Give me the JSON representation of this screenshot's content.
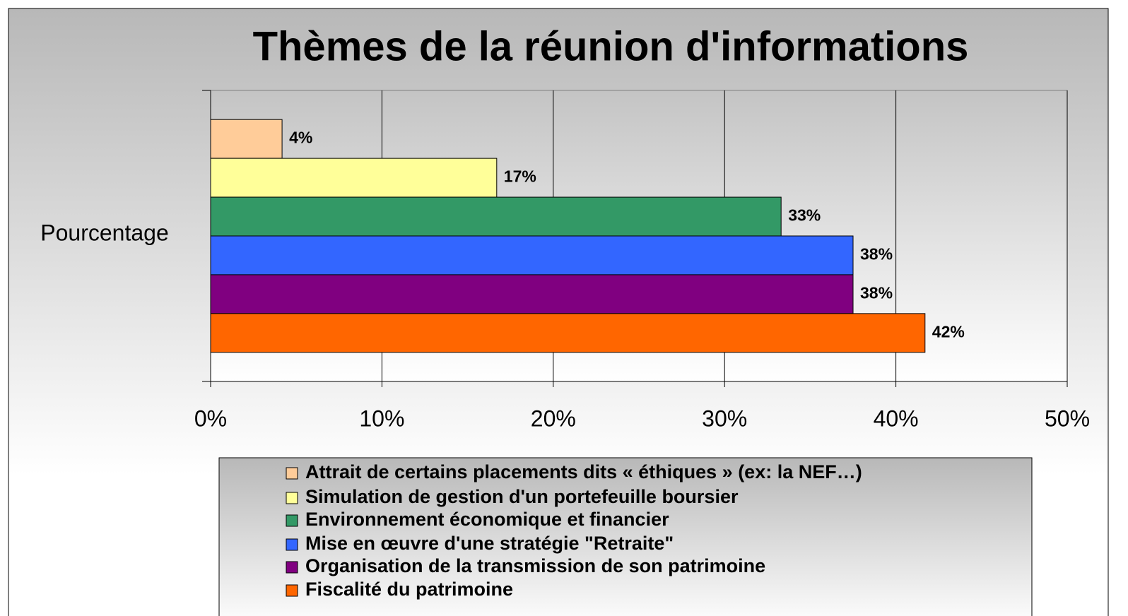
{
  "chart_data": {
    "type": "bar",
    "orientation": "horizontal",
    "title": "Thèmes de la réunion d'informations",
    "categories": [
      "Pourcentage"
    ],
    "series": [
      {
        "name": "Attrait de certains placements dits « éthiques » (ex: la NEF…)",
        "color": "#ffcc99",
        "values": [
          4.17
        ],
        "value_labels": [
          "4%"
        ]
      },
      {
        "name": "Simulation de gestion d'un portefeuille boursier",
        "color": "#ffff99",
        "values": [
          16.7
        ],
        "value_labels": [
          "17%"
        ]
      },
      {
        "name": "Environnement économique et financier",
        "color": "#339966",
        "values": [
          33.3
        ],
        "value_labels": [
          "33%"
        ]
      },
      {
        "name": "Mise en œuvre d'une stratégie \"Retraite\"",
        "color": "#3366ff",
        "values": [
          37.5
        ],
        "value_labels": [
          "38%"
        ]
      },
      {
        "name": "Organisation de la transmission de son patrimoine",
        "color": "#800080",
        "values": [
          37.5
        ],
        "value_labels": [
          "38%"
        ]
      },
      {
        "name": "Fiscalité du patrimoine",
        "color": "#ff6600",
        "values": [
          41.7
        ],
        "value_labels": [
          "42%"
        ]
      }
    ],
    "xlim": [
      0,
      50
    ],
    "xticks": [
      {
        "value": 0,
        "label": "0%"
      },
      {
        "value": 10,
        "label": "10%"
      },
      {
        "value": 20,
        "label": "20%"
      },
      {
        "value": 30,
        "label": "30%"
      },
      {
        "value": 40,
        "label": "40%"
      },
      {
        "value": 50,
        "label": "50%"
      }
    ],
    "grid": true,
    "legend": "bottom"
  }
}
